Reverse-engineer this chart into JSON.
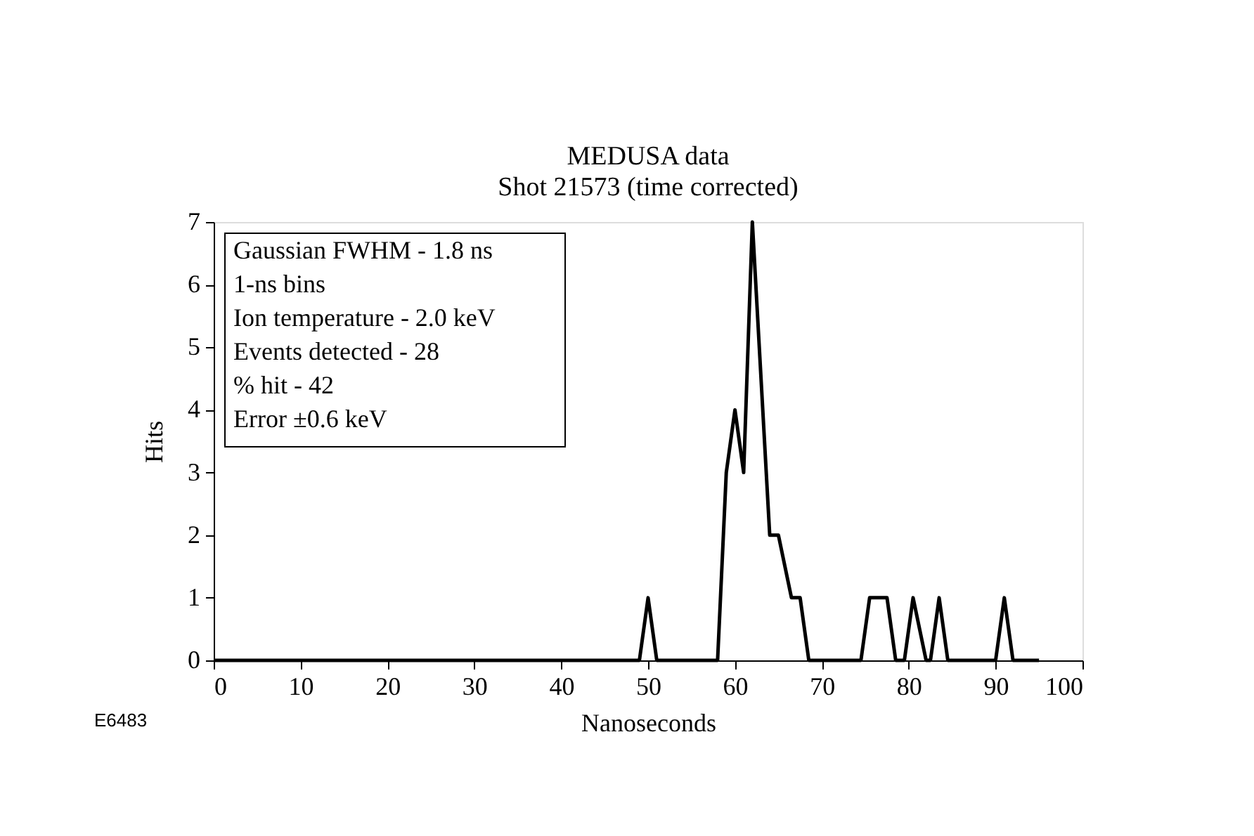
{
  "chart_data": {
    "type": "line",
    "title": "MEDUSA data",
    "subtitle": "Shot 21573 (time corrected)",
    "xlabel": "Nanoseconds",
    "ylabel": "Hits",
    "x": [
      0,
      49,
      50,
      51,
      58,
      59,
      60,
      61,
      62,
      64,
      65,
      66.5,
      67.5,
      68.5,
      74.5,
      75.5,
      77.5,
      78.5,
      79.5,
      80.5,
      82,
      82.5,
      83.5,
      84.5,
      90,
      91,
      92,
      95
    ],
    "series": [
      {
        "color": "#000000",
        "values": [
          0,
          0,
          1,
          0,
          0,
          3,
          4,
          3,
          7,
          2,
          2,
          1,
          1,
          0,
          0,
          1,
          1,
          0,
          0,
          1,
          0,
          0,
          1,
          0,
          0,
          1,
          0,
          0
        ]
      }
    ],
    "xlim": [
      0,
      100
    ],
    "xticks": [
      0,
      10,
      20,
      30,
      40,
      50,
      60,
      70,
      80,
      90,
      100
    ],
    "ylim": [
      0,
      7
    ],
    "yticks": [
      0,
      1,
      2,
      3,
      4,
      5,
      6,
      7
    ],
    "grid": false,
    "legend": false,
    "marker": "none",
    "line_style": "solid",
    "annotations": [
      "Gaussian FWHM - 1.8 ns",
      "1-ns bins",
      "Ion temperature - 2.0 keV",
      "Events detected - 28",
      "% hit - 42",
      "Error ±0.6 keV",
      "E6483"
    ]
  }
}
